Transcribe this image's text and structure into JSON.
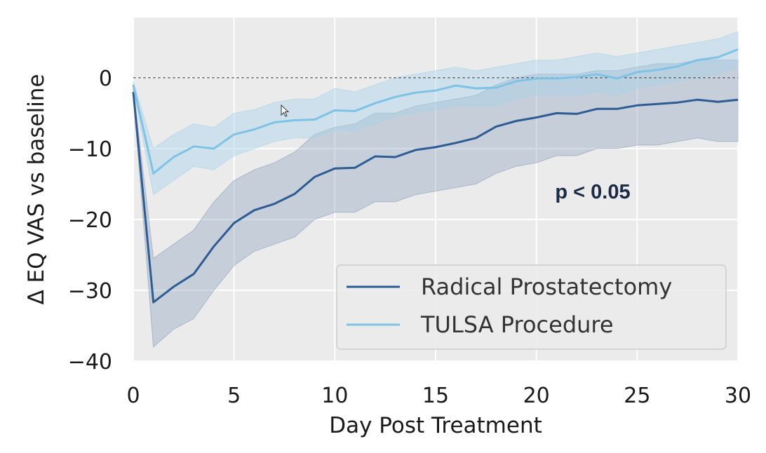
{
  "chart_data": {
    "type": "line",
    "xlabel": "Day Post Treatment",
    "ylabel": "Δ EQ VAS vs baseline",
    "xlim": [
      0,
      30
    ],
    "ylim": [
      -40,
      8.5
    ],
    "xticks": [
      0,
      5,
      10,
      15,
      20,
      25,
      30
    ],
    "xtick_labels": [
      "0",
      "5",
      "10",
      "15",
      "20",
      "25",
      "30"
    ],
    "yticks": [
      0,
      -10,
      -20,
      -30,
      -40
    ],
    "ytick_labels": [
      "0",
      "−10",
      "−20",
      "−30",
      "−40"
    ],
    "grid": true,
    "reference_line": 0,
    "annotation": "p < 0.05",
    "legend_position": "lower-right",
    "series": [
      {
        "name": "Radical Prostatectomy",
        "color": "#2c5c93",
        "band_color": "#8ca0bc",
        "x": [
          0,
          1,
          2,
          3,
          4,
          5,
          6,
          7,
          8,
          9,
          10,
          11,
          12,
          13,
          14,
          15,
          16,
          17,
          18,
          19,
          20,
          21,
          22,
          23,
          24,
          25,
          26,
          27,
          28,
          29,
          30
        ],
        "y": [
          -2,
          -31.7,
          -29.5,
          -27.7,
          -23.8,
          -20.5,
          -18.7,
          -17.8,
          -16.4,
          -14,
          -12.8,
          -12.7,
          -11.1,
          -11.2,
          -10.2,
          -9.8,
          -9.2,
          -8.5,
          -6.9,
          -6.1,
          -5.6,
          -5,
          -5.1,
          -4.4,
          -4.4,
          -3.9,
          -3.7,
          -3.5,
          -3.1,
          -3.4,
          -3.1
        ],
        "lower": [
          -2.5,
          -38,
          -35.5,
          -34,
          -30,
          -26.5,
          -24.5,
          -23.5,
          -22.5,
          -20,
          -19,
          -19,
          -17.5,
          -17.5,
          -16.5,
          -16,
          -15.5,
          -15,
          -13.5,
          -12.5,
          -12,
          -11,
          -11,
          -10,
          -10,
          -9.5,
          -9.5,
          -9,
          -8.5,
          -9,
          -9
        ],
        "upper": [
          -1.5,
          -25.5,
          -23.5,
          -21.5,
          -17.5,
          -14.5,
          -13,
          -12,
          -10.5,
          -8,
          -7,
          -6.5,
          -5,
          -5,
          -4,
          -3.5,
          -3,
          -2.5,
          -1,
          0,
          0.5,
          0.5,
          0.5,
          1,
          1,
          1.5,
          2,
          2,
          2.5,
          2.5,
          2.5
        ]
      },
      {
        "name": "TULSA Procedure",
        "color": "#7ec3e6",
        "band_color": "#a8d3ea",
        "x": [
          0,
          1,
          2,
          3,
          4,
          5,
          6,
          7,
          8,
          9,
          10,
          11,
          12,
          13,
          14,
          15,
          16,
          17,
          18,
          19,
          20,
          21,
          22,
          23,
          24,
          25,
          26,
          27,
          28,
          29,
          30
        ],
        "y": [
          -1,
          -13.5,
          -11.2,
          -9.7,
          -10,
          -8,
          -7.3,
          -6.3,
          -6,
          -5.9,
          -4.6,
          -4.7,
          -3.6,
          -2.7,
          -2.1,
          -1.8,
          -1.1,
          -1.5,
          -1.4,
          -0.5,
          -0.1,
          -0.1,
          0.1,
          0.5,
          -0.1,
          0.8,
          1.1,
          1.6,
          2.5,
          2.9,
          4
        ],
        "lower": [
          -1.5,
          -16.5,
          -14.5,
          -12.5,
          -13,
          -11,
          -10,
          -9,
          -8.5,
          -8.5,
          -7.5,
          -7.5,
          -6.5,
          -5.5,
          -5,
          -4.5,
          -4,
          -4,
          -4,
          -3,
          -2.5,
          -2.5,
          -2.5,
          -2,
          -2.5,
          -1.5,
          -1,
          -0.5,
          0,
          0.5,
          1.5
        ],
        "upper": [
          -0.5,
          -10,
          -8,
          -6.5,
          -7,
          -5,
          -4.5,
          -3.5,
          -3,
          -3,
          -1.5,
          -2,
          -1,
          0,
          0.5,
          1,
          1.5,
          1,
          1.5,
          2,
          2.5,
          2.5,
          3,
          3.5,
          3,
          3.5,
          4,
          4.5,
          5,
          5.5,
          6.5
        ]
      }
    ]
  }
}
